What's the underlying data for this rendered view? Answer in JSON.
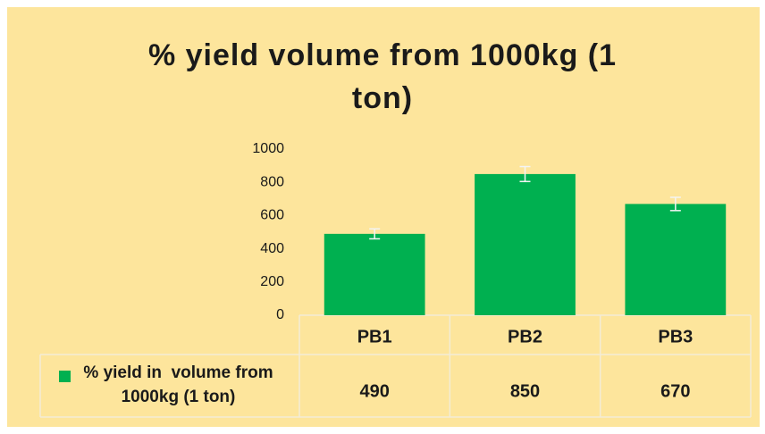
{
  "chart_data": {
    "type": "bar",
    "title": "% yield volume from 1000kg (1 ton)",
    "categories": [
      "PB1",
      "PB2",
      "PB3"
    ],
    "series": [
      {
        "name": "% yield in  volume from 1000kg (1 ton)",
        "color": "#00b050",
        "values": [
          490,
          850,
          670
        ],
        "errors": [
          30,
          45,
          40
        ]
      }
    ],
    "ylim": [
      0,
      1000
    ],
    "yticks": [
      0,
      200,
      400,
      600,
      800,
      1000
    ],
    "grid": false,
    "data_table": true
  }
}
